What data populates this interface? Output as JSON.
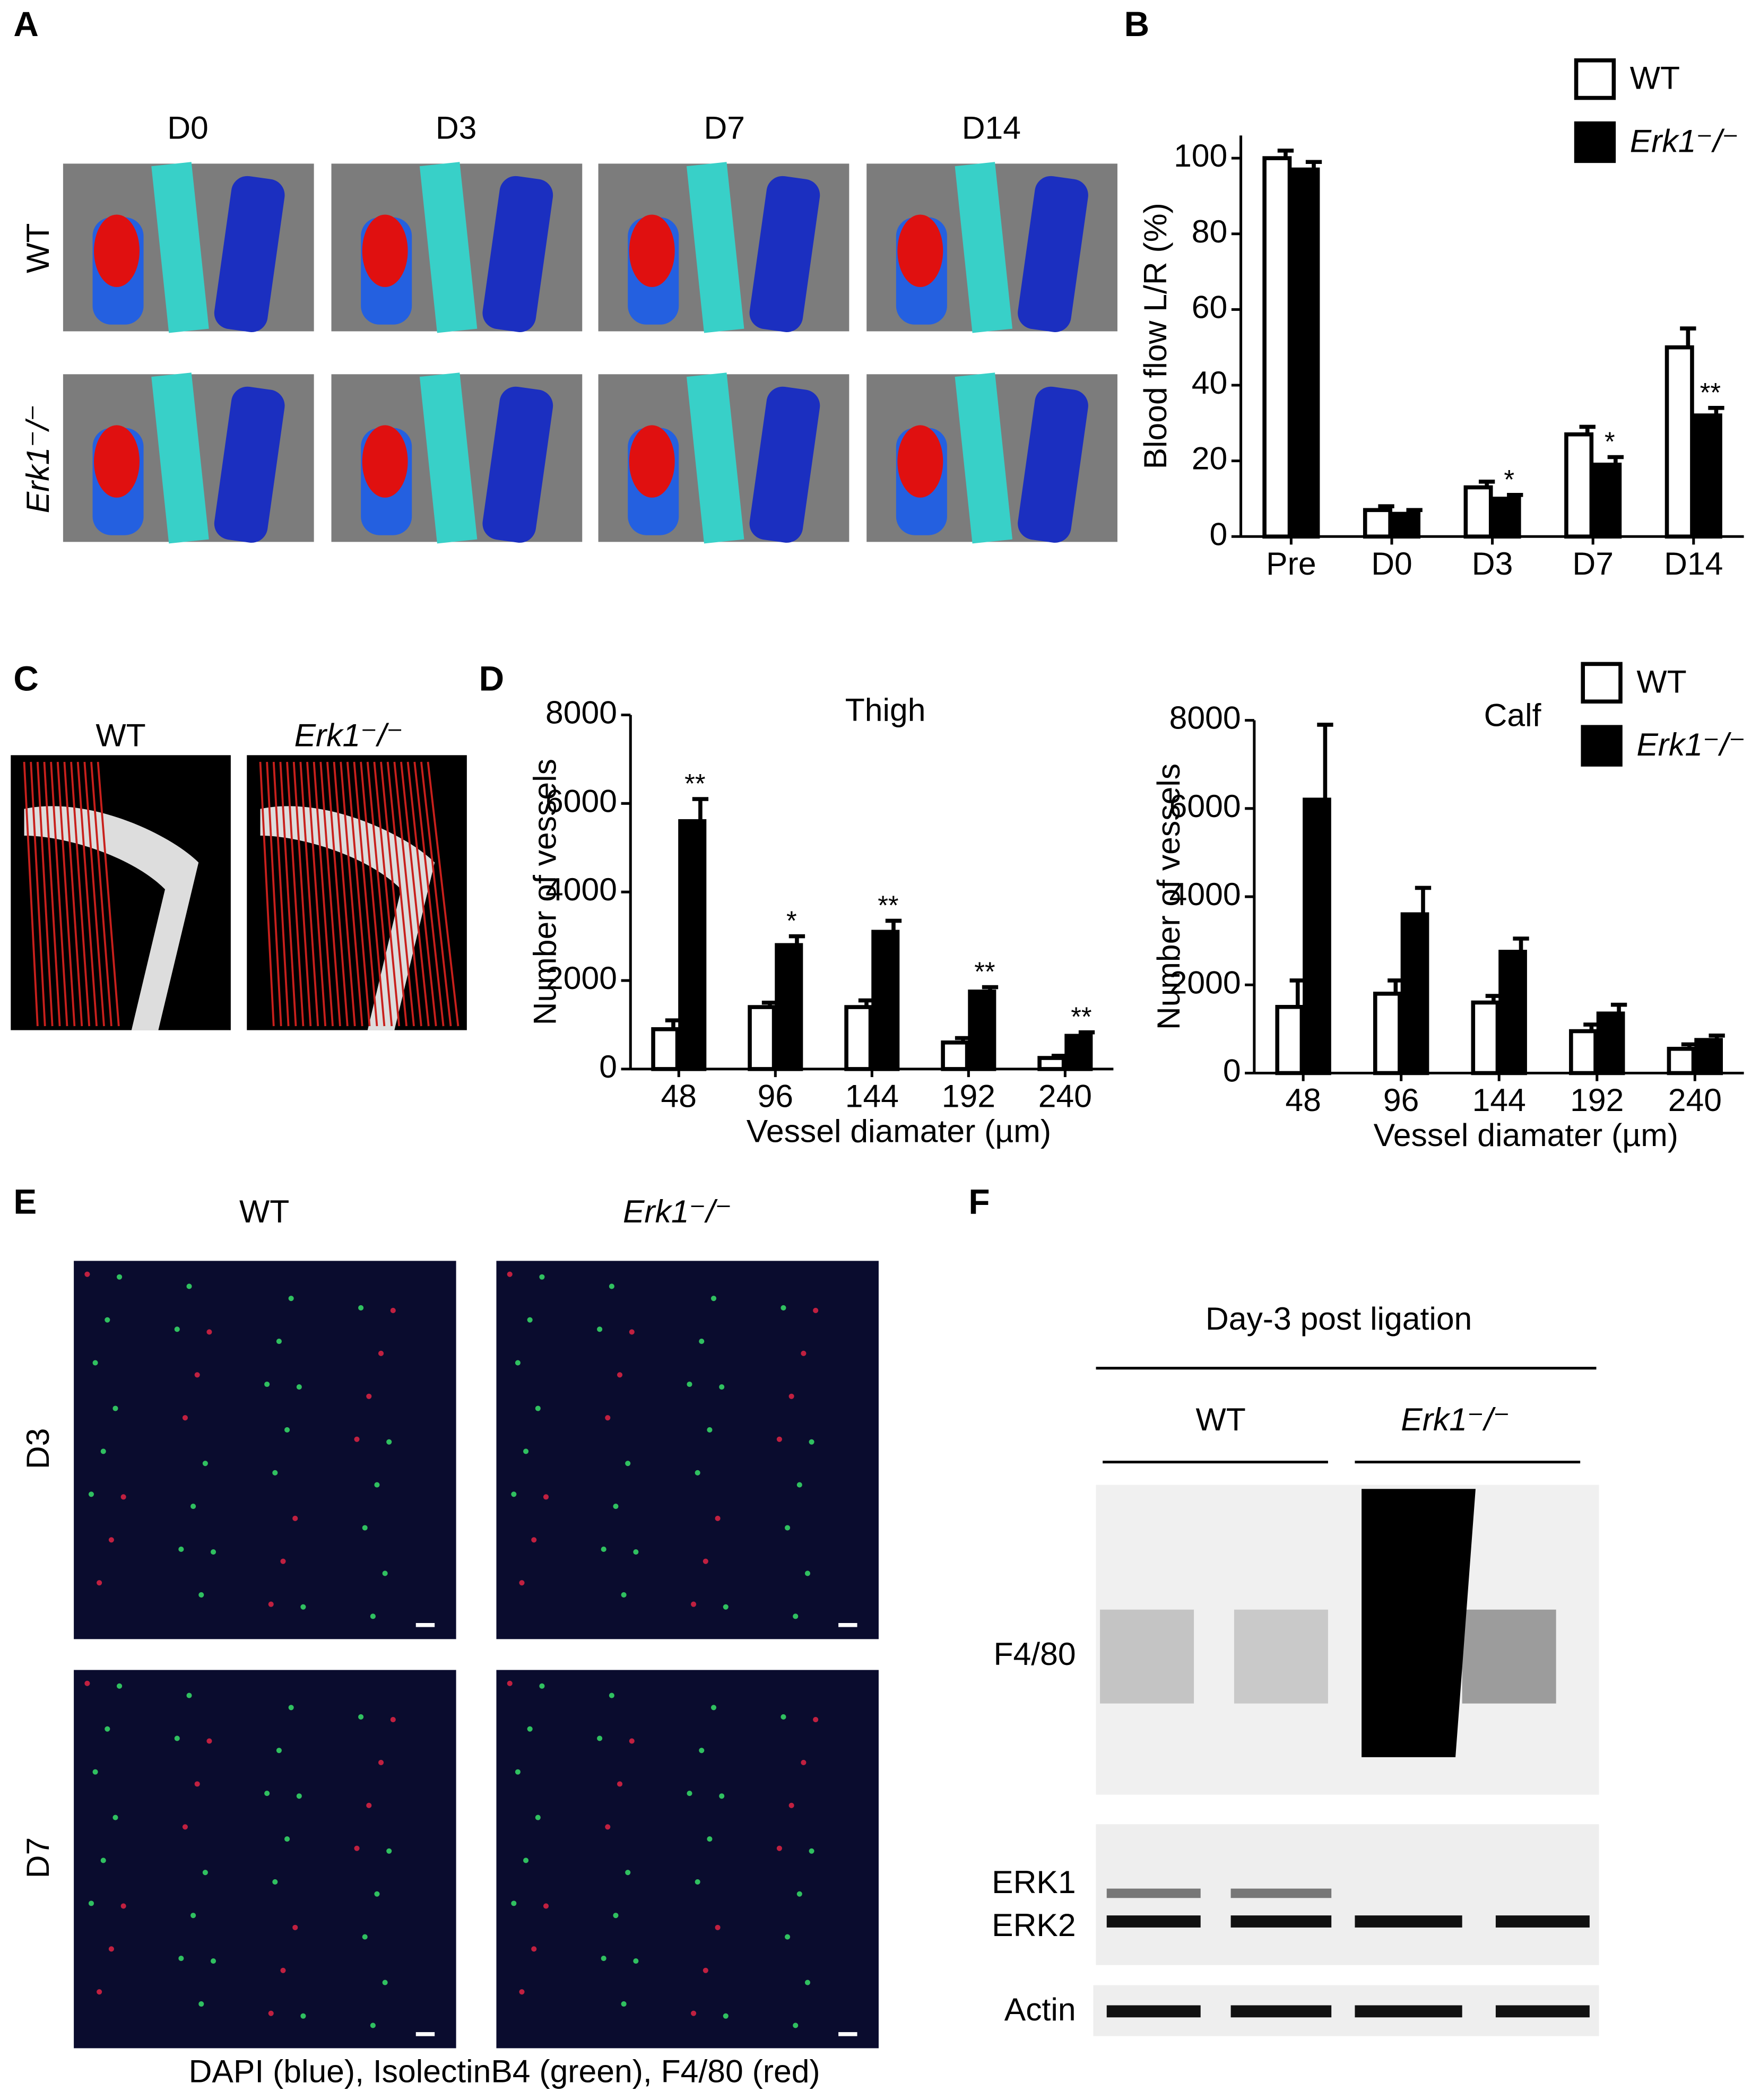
{
  "panel_labels": [
    "A",
    "B",
    "C",
    "D",
    "E",
    "F"
  ],
  "panel_a": {
    "columns": [
      "D0",
      "D3",
      "D7",
      "D14"
    ],
    "rows": [
      "WT",
      "Erk1⁻/⁻"
    ]
  },
  "panel_c": {
    "columns": [
      "WT",
      "Erk1⁻/⁻"
    ]
  },
  "panel_e": {
    "columns": [
      "WT",
      "Erk1⁻/⁻"
    ],
    "rows": [
      "D3",
      "D7"
    ],
    "caption": "DAPI (blue), IsolectinB4 (green), F4/80 (red)"
  },
  "panel_f": {
    "title": "Day-3 post ligation",
    "groups": [
      "WT",
      "Erk1⁻/⁻"
    ],
    "bands": [
      "F4/80",
      "ERK1",
      "ERK2",
      "Actin"
    ]
  },
  "chart_data": [
    {
      "type": "bar",
      "ylabel": "Blood flow L/R (%)",
      "categories": [
        "Pre",
        "D0",
        "D3",
        "D7",
        "D14"
      ],
      "series": [
        {
          "name": "WT",
          "color": "#ffffff",
          "values": [
            100,
            7,
            13,
            27,
            50
          ],
          "errors": [
            2,
            1,
            1.5,
            2,
            5
          ]
        },
        {
          "name": "Erk1⁻/⁻",
          "color": "#000000",
          "values": [
            97,
            6,
            10,
            19,
            32
          ],
          "errors": [
            2,
            1,
            1,
            2,
            2
          ]
        }
      ],
      "annotations": [
        null,
        null,
        "*",
        "*",
        "**"
      ],
      "ylim": [
        0,
        106
      ],
      "yticks": [
        0,
        20,
        40,
        60,
        80,
        100
      ],
      "legend": "top-right"
    },
    {
      "type": "bar",
      "title": "Thigh",
      "ylabel": "Number of vessels",
      "xlabel": "Vessel diamater (µm)",
      "categories": [
        "48",
        "96",
        "144",
        "192",
        "240"
      ],
      "series": [
        {
          "color": "#ffffff",
          "values": [
            900,
            1400,
            1400,
            600,
            250
          ],
          "errors": [
            200,
            100,
            150,
            100,
            50
          ]
        },
        {
          "color": "#000000",
          "values": [
            5600,
            2800,
            3100,
            1750,
            750
          ],
          "errors": [
            500,
            200,
            250,
            100,
            80
          ]
        }
      ],
      "annotations": [
        "**",
        "*",
        "**",
        "**",
        "**"
      ],
      "ylim": [
        0,
        8000
      ],
      "yticks": [
        0,
        2000,
        4000,
        6000,
        8000
      ]
    },
    {
      "type": "bar",
      "title": "Calf",
      "ylabel": "Number of vessels",
      "xlabel": "Vessel diamater (µm)",
      "categories": [
        "48",
        "96",
        "144",
        "192",
        "240"
      ],
      "series": [
        {
          "name": "WT",
          "color": "#ffffff",
          "values": [
            1500,
            1800,
            1600,
            950,
            550
          ],
          "errors": [
            600,
            300,
            150,
            150,
            100
          ]
        },
        {
          "name": "Erk1⁻/⁻",
          "color": "#000000",
          "values": [
            6200,
            3600,
            2750,
            1350,
            750
          ],
          "errors": [
            1700,
            600,
            300,
            200,
            100
          ]
        }
      ],
      "ylim": [
        0,
        8000
      ],
      "yticks": [
        0,
        2000,
        4000,
        6000,
        8000
      ],
      "legend": "top-right"
    }
  ]
}
